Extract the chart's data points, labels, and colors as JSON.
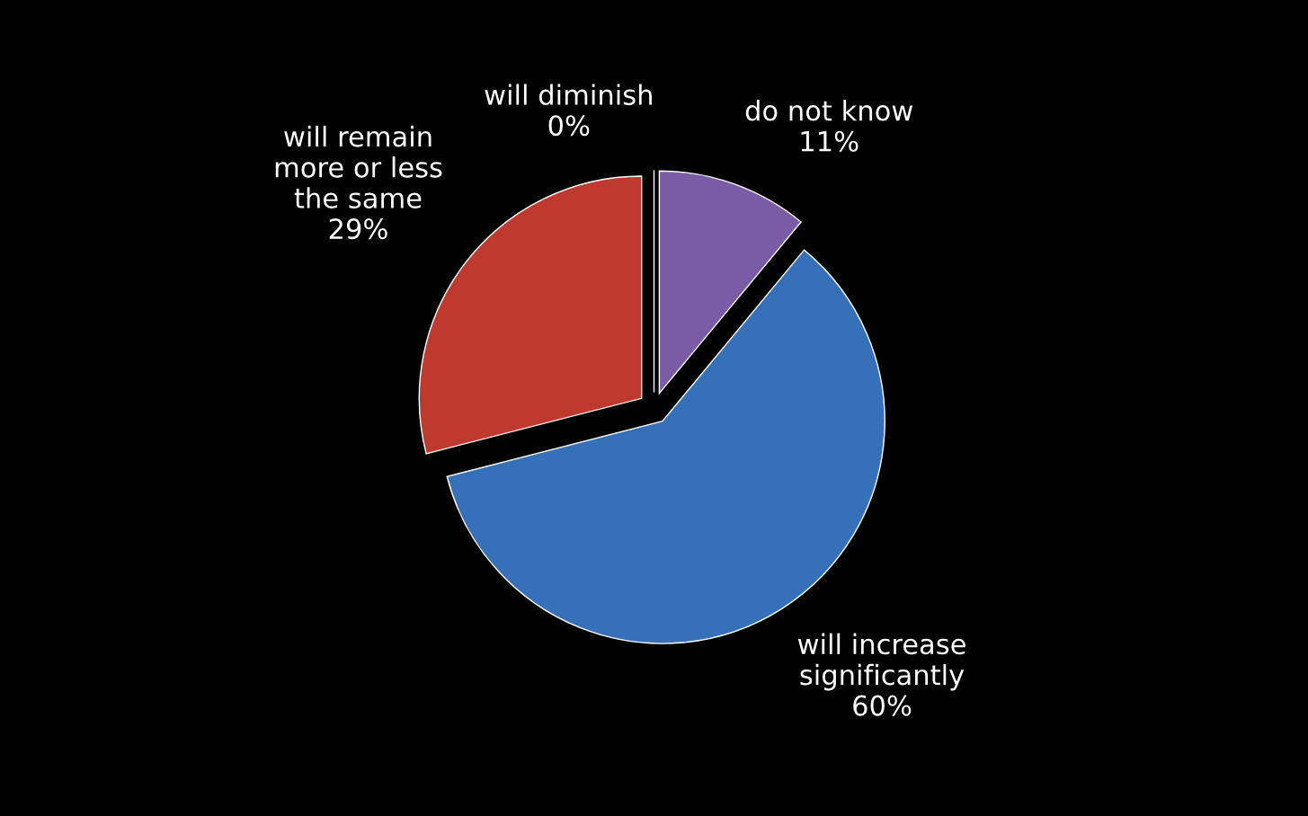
{
  "chart_data": {
    "type": "pie",
    "categories": [
      "will diminish",
      "do not know",
      "will increase\nsignificantly",
      "will remain\nmore or less\nthe same"
    ],
    "values": [
      0,
      11,
      60,
      29
    ],
    "colors": [
      "#4f6228",
      "#7a5ba5",
      "#3570b8",
      "#c0392f"
    ],
    "value_labels": [
      "0%",
      "11%",
      "60%",
      "29%"
    ],
    "legend": false
  }
}
